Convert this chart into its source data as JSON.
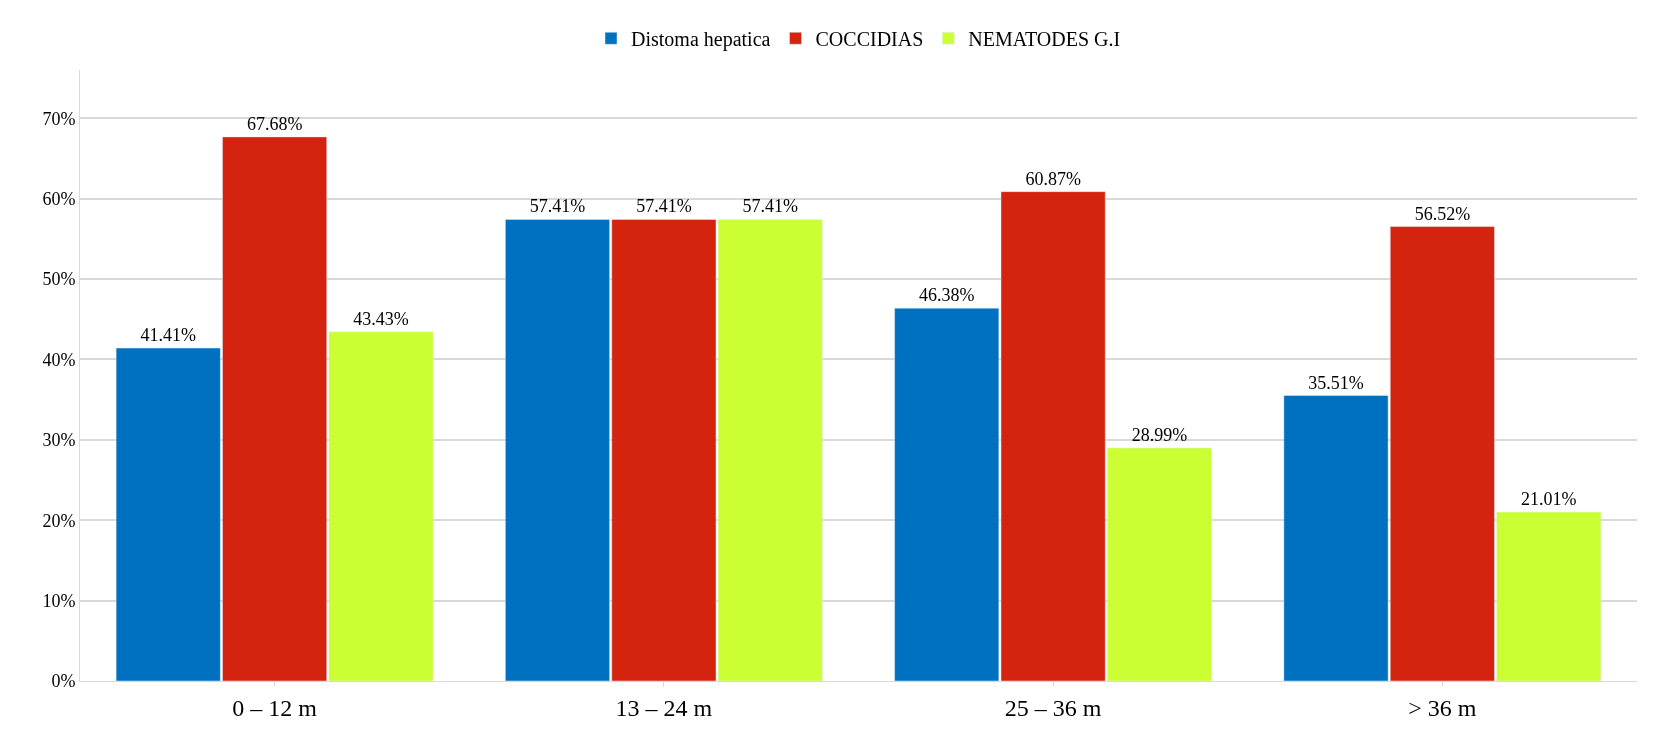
{
  "chart_data": {
    "type": "bar",
    "categories": [
      "0 – 12 m",
      "13 – 24 m",
      "25 – 36 m",
      "> 36 m"
    ],
    "series": [
      {
        "name": "Distoma hepatica",
        "color": "#0070c0",
        "values": [
          41.41,
          57.41,
          46.38,
          35.51
        ],
        "value_labels": [
          "41.41%",
          "57.41%",
          "46.38%",
          "35.51%"
        ]
      },
      {
        "name": "COCCIDIAS",
        "color": "#d4230f",
        "values": [
          67.68,
          57.41,
          60.87,
          56.52
        ],
        "value_labels": [
          "67.68%",
          "57.41%",
          "60.87%",
          "56.52%"
        ]
      },
      {
        "name": "NEMATODES G.I",
        "color": "#ccff33",
        "values": [
          43.43,
          57.41,
          28.99,
          21.01
        ],
        "value_labels": [
          "43.43%",
          "57.41%",
          "28.99%",
          "21.01%"
        ]
      }
    ],
    "ylim": [
      0,
      76
    ],
    "yticks": [
      {
        "value": 0,
        "label": "0%"
      },
      {
        "value": 10,
        "label": "10%"
      },
      {
        "value": 20,
        "label": "20%"
      },
      {
        "value": 30,
        "label": "30%"
      },
      {
        "value": 40,
        "label": "40%"
      },
      {
        "value": 50,
        "label": "50%"
      },
      {
        "value": 60,
        "label": "60%"
      },
      {
        "value": 70,
        "label": "70%"
      }
    ],
    "grid": "y",
    "legend": "top"
  }
}
